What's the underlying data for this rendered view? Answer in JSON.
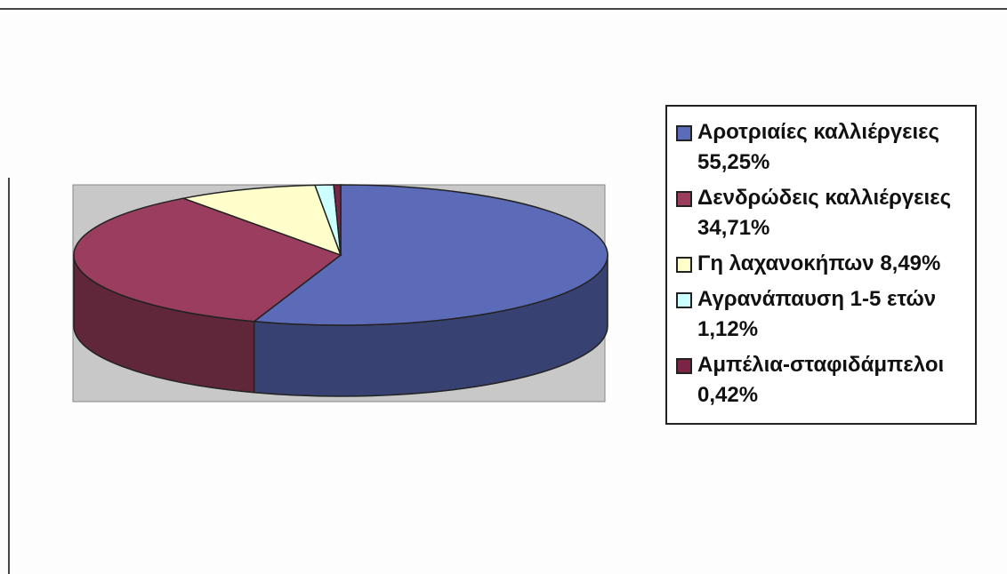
{
  "chart_data": {
    "type": "pie",
    "categories": [
      "Αροτριαίες καλλιέργειες 55,25%",
      "Δενδρώδεις καλλιέργειες 34,71%",
      "Γη λαχανοκήπων 8,49%",
      "Αγρανάπαυση 1-5 ετών 1,12%",
      "Αμπέλια-σταφιδάμπελοι 0,42%"
    ],
    "values": [
      55.25,
      34.71,
      8.49,
      1.12,
      0.42
    ],
    "colors": [
      "#5b6bb8",
      "#9b3d5e",
      "#ffffcc",
      "#ccffff",
      "#7a2446"
    ]
  }
}
